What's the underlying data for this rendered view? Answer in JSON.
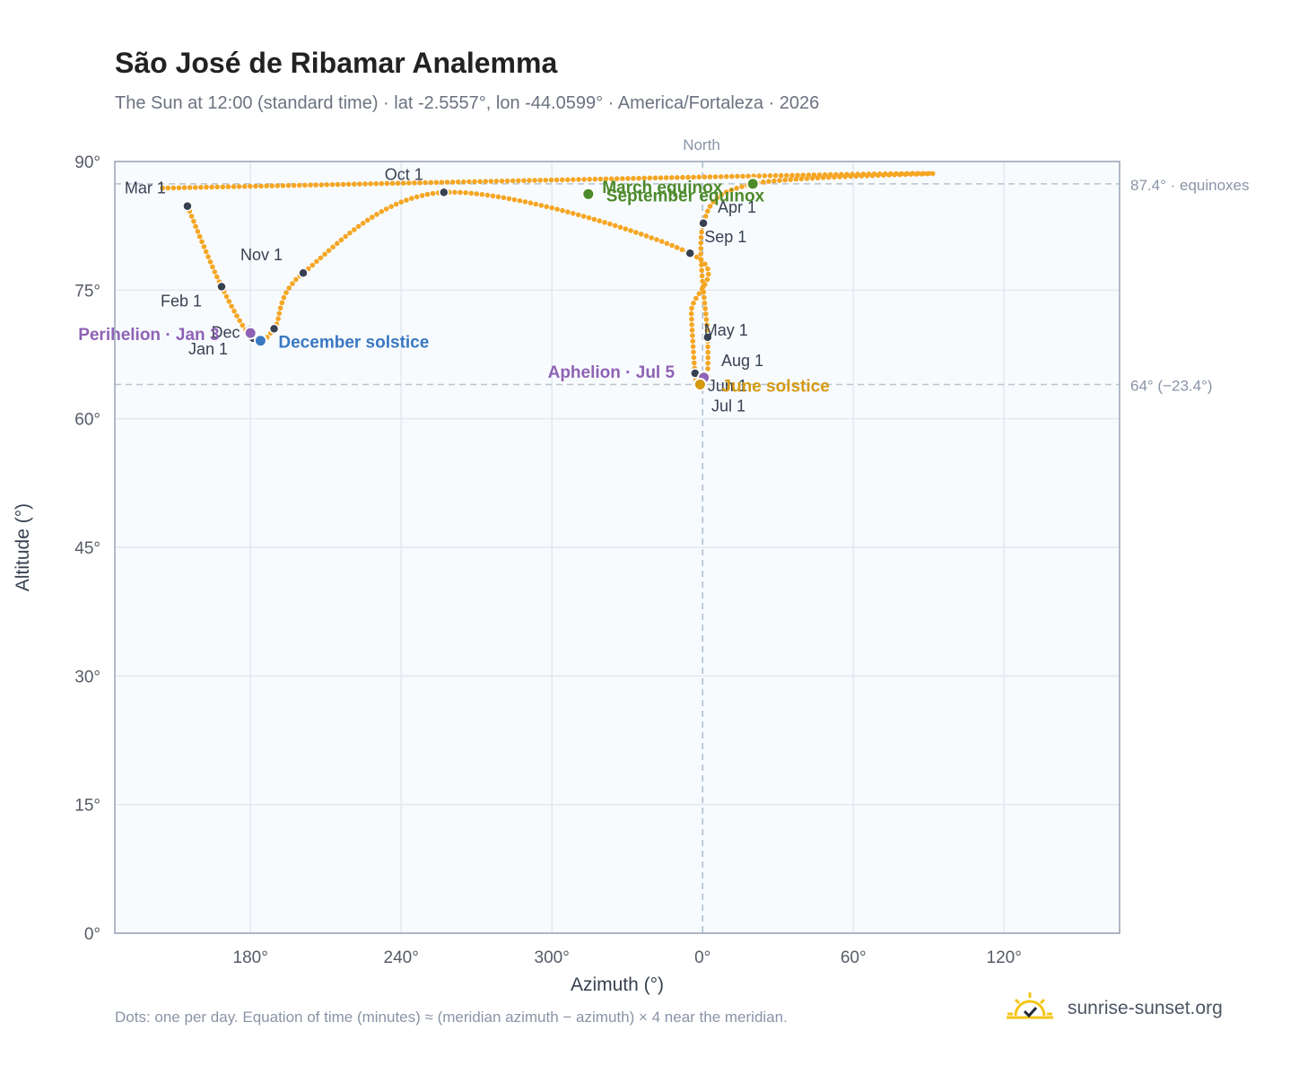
{
  "header": {
    "title": "São José de Ribamar Analemma",
    "subtitle": "The Sun at 12:00 (standard time) · lat -2.5557°, lon -44.0599° · America/Fortaleza · 2026"
  },
  "footer": {
    "note": "Dots: one per day. Equation of time (minutes) ≈ (meridian azimuth − azimuth) × 4 near the meridian.",
    "brand": "sunrise-sunset.org"
  },
  "colors": {
    "curve": "#f5a623",
    "month_marker": "#374151",
    "perihelion": "#8e63b5",
    "aphelion": "#8e63b5",
    "december_solstice": "#3a78c2",
    "june_solstice": "#d49a12",
    "equinox": "#4d8a2a",
    "plot_background": "#f8fbfe",
    "grid": "#e3e8ef",
    "frame": "#98a2b3",
    "reference": "#b8c4cf"
  },
  "chart_data": {
    "type": "scatter",
    "title": "São José de Ribamar Analemma",
    "subtitle": "The Sun at 12:00 (standard time) · lat -2.5557°, lon -44.0599° · America/Fortaleza · 2026",
    "xlabel": "Azimuth (°)",
    "ylabel": "Altitude (°)",
    "x_axis": {
      "wraps": true,
      "center_label": "North",
      "ticks": [
        {
          "label": "180°",
          "unwrapped": -180
        },
        {
          "label": "240°",
          "unwrapped": -120
        },
        {
          "label": "300°",
          "unwrapped": -60
        },
        {
          "label": "0°",
          "unwrapped": 0
        },
        {
          "label": "60°",
          "unwrapped": 60
        },
        {
          "label": "120°",
          "unwrapped": 120
        }
      ],
      "range_unwrapped": [
        -234,
        166
      ]
    },
    "ylim": [
      0,
      90
    ],
    "y_ticks": [
      {
        "value": 0,
        "label": "0°"
      },
      {
        "value": 15,
        "label": "15°"
      },
      {
        "value": 30,
        "label": "30°"
      },
      {
        "value": 45,
        "label": "45°"
      },
      {
        "value": 60,
        "label": "60°"
      },
      {
        "value": 75,
        "label": "75°"
      },
      {
        "value": 90,
        "label": "90°"
      }
    ],
    "reference_lines": [
      {
        "y": 87.4,
        "label": "87.4° · equinoxes"
      },
      {
        "y": 64.0,
        "label": "64° (−23.4°)"
      }
    ],
    "month_markers": [
      {
        "label": "Jan 1",
        "az": 181.0,
        "alt": 69.4
      },
      {
        "label": "Feb 1",
        "az": 168.5,
        "alt": 75.4
      },
      {
        "label": "Mar 1",
        "az": 154.9,
        "alt": 84.8
      },
      {
        "label": "Apr 1",
        "az": 0.3,
        "alt": 82.8
      },
      {
        "label": "May 1",
        "az": 2.0,
        "alt": 69.5
      },
      {
        "label": "Jun 1",
        "az": 357.0,
        "alt": 65.3
      },
      {
        "label": "Jul 1",
        "az": 358.5,
        "alt": 64.0
      },
      {
        "label": "Aug 1",
        "az": 1.7,
        "alt": 64.9
      },
      {
        "label": "Sep 1",
        "az": 355.0,
        "alt": 79.3
      },
      {
        "label": "Oct 1",
        "az": 257.0,
        "alt": 86.4
      },
      {
        "label": "Nov 1",
        "az": 201.0,
        "alt": 77.0
      },
      {
        "label": "Dec 1",
        "az": 189.4,
        "alt": 70.5
      }
    ],
    "events": [
      {
        "label": "Perihelion · Jan 3",
        "az": 180.0,
        "alt": 70.0,
        "kind": "perihelion"
      },
      {
        "label": "December solstice",
        "az": 184.0,
        "alt": 69.1,
        "kind": "december_solstice"
      },
      {
        "label": "Aphelion · Jul 5",
        "az": 0.5,
        "alt": 64.8,
        "kind": "aphelion"
      },
      {
        "label": "June solstice",
        "az": 359.0,
        "alt": 64.0,
        "kind": "june_solstice"
      },
      {
        "label": "March equinox",
        "az": 20.0,
        "alt": 87.4,
        "kind": "equinox"
      },
      {
        "label": "September equinox",
        "az": 314.5,
        "alt": 86.2,
        "kind": "equinox"
      }
    ],
    "path_keypoints": [
      {
        "az": 154.9,
        "alt": 84.8
      },
      {
        "az": 168.5,
        "alt": 75.4
      },
      {
        "az": 181.0,
        "alt": 69.4
      },
      {
        "az": 189.4,
        "alt": 70.5
      },
      {
        "az": 201.0,
        "alt": 77.0
      },
      {
        "az": 257.0,
        "alt": 86.4
      },
      {
        "az": 355.0,
        "alt": 79.3
      },
      {
        "az": 355.5,
        "alt": 72.4
      },
      {
        "az": 357.0,
        "alt": 65.3
      },
      {
        "az": 358.5,
        "alt": 64.0
      },
      {
        "az": 1.7,
        "alt": 64.9
      },
      {
        "az": 2.0,
        "alt": 69.5
      },
      {
        "az": 0.3,
        "alt": 82.8
      },
      {
        "az": 20.0,
        "alt": 87.4
      },
      {
        "az": 82.0,
        "alt": 88.6
      },
      {
        "az": 145.0,
        "alt": 86.9
      }
    ]
  }
}
